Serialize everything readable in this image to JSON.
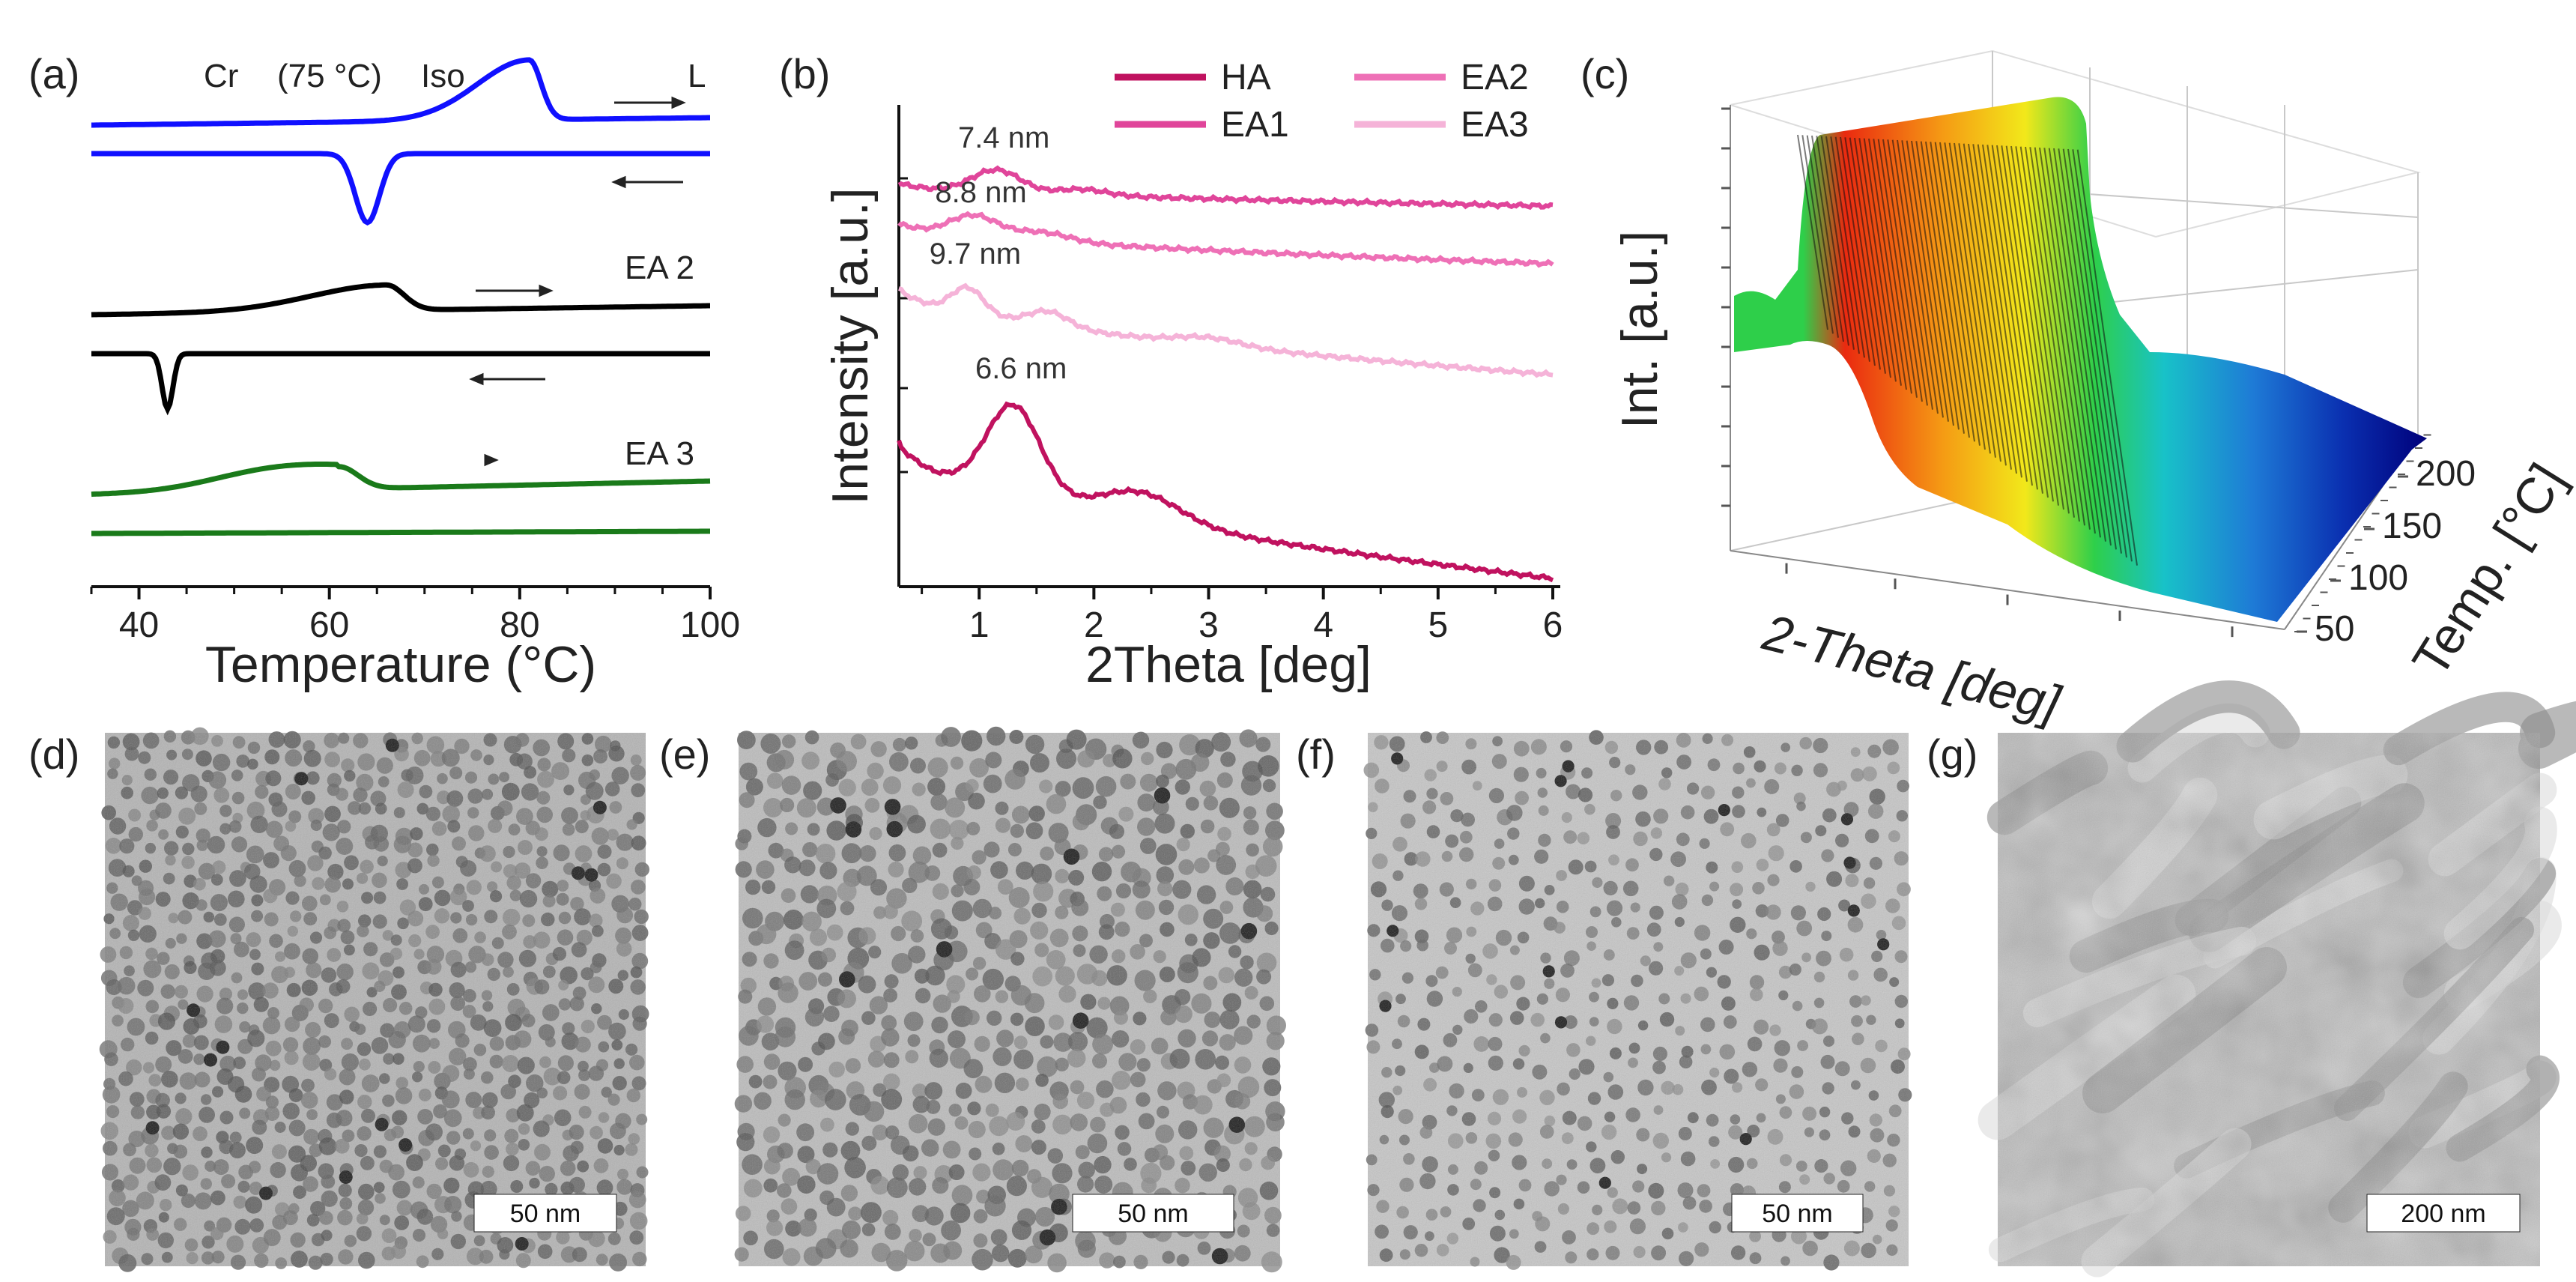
{
  "chart_data": [
    {
      "type": "line",
      "panel": "(a)",
      "title": "",
      "xlabel": "Temperature (°C)",
      "ylabel": "",
      "xlim": [
        35,
        100
      ],
      "xticks": [
        "40",
        "60",
        "80",
        "100"
      ],
      "top_annotation": {
        "text_left": "Cr",
        "text_mid": "(75 °C)",
        "text_right": "Iso",
        "label_right": "L"
      },
      "series": [
        {
          "name": "L heating",
          "label": "L",
          "direction": "heating",
          "peak_x": 81,
          "peak_type": "endo",
          "color": "#1010ff"
        },
        {
          "name": "L cooling",
          "direction": "cooling",
          "peak_x": 64,
          "peak_type": "exo",
          "color": "#1010ff"
        },
        {
          "name": "EA 2 heating",
          "label": "EA 2",
          "direction": "heating",
          "peak_x": 66,
          "peak_type": "endo",
          "color": "#000000"
        },
        {
          "name": "EA 2 cooling",
          "direction": "cooling",
          "peak_x": 43,
          "peak_type": "exo",
          "color": "#000000"
        },
        {
          "name": "EA 3 heating",
          "label": "EA 3",
          "direction": "heating",
          "peak_x": 61,
          "peak_type": "endo",
          "color": "#1a7a1a"
        },
        {
          "name": "EA 3 cooling",
          "direction": "cooling",
          "peak_x": null,
          "peak_type": "none",
          "color": "#1a7a1a"
        }
      ]
    },
    {
      "type": "line",
      "panel": "(b)",
      "xlabel": "2Theta [deg]",
      "ylabel": "Intensity [a.u.]",
      "xlim": [
        0.3,
        6
      ],
      "xticks": [
        "1",
        "2",
        "3",
        "4",
        "5",
        "6"
      ],
      "legend": [
        "HA",
        "EA1",
        "EA2",
        "EA3"
      ],
      "series": [
        {
          "name": "EA1",
          "color": "#e0459a",
          "peak_x": 1.15,
          "peak_label": "7.4 nm"
        },
        {
          "name": "EA2",
          "color": "#ee70b6",
          "peak_x": 0.95,
          "peak_label": "8.8 nm"
        },
        {
          "name": "EA3",
          "color": "#f5b3d8",
          "peak_x": 0.9,
          "peak_label": "9.7 nm"
        },
        {
          "name": "HA",
          "color": "#c0125f",
          "peak_x": 1.3,
          "peak_label": "6.6 nm"
        }
      ]
    },
    {
      "type": "surface3d",
      "panel": "(c)",
      "xlabel": "2-Theta [deg]",
      "ylabel": "Temp. [°C]",
      "zlabel": "Int. [a.u.]",
      "yticks": [
        "50",
        "100",
        "150",
        "200"
      ],
      "colormap": [
        "#00007a",
        "#0a2fb0",
        "#1e7ad6",
        "#18c2c8",
        "#2ecf4a",
        "#b4e01e",
        "#f2e81a",
        "#f59a14",
        "#ea2a10"
      ]
    }
  ],
  "images": [
    {
      "panel": "(d)",
      "scale_bar": "50 nm"
    },
    {
      "panel": "(e)",
      "scale_bar": "50 nm"
    },
    {
      "panel": "(f)",
      "scale_bar": "50 nm"
    },
    {
      "panel": "(g)",
      "scale_bar": "200 nm"
    }
  ]
}
